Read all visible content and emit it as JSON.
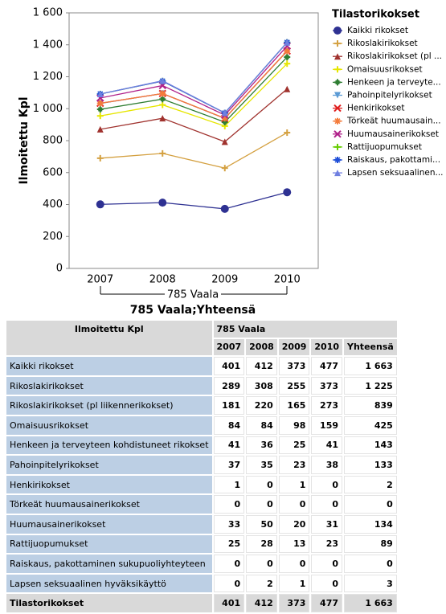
{
  "chart_data": {
    "type": "stacked-line",
    "title": "785 Vaala;Yhteensä",
    "x_group_label": "785 Vaala",
    "y_label": "Ilmoitettu Kpl",
    "legend_title": "Tilastorikokset",
    "legend": "right",
    "categories": [
      "2007",
      "2008",
      "2009",
      "2010"
    ],
    "ylim": [
      0,
      1600
    ],
    "yticks": [
      0,
      200,
      400,
      600,
      800,
      {
        "value": 1000,
        "label": "1 000"
      },
      {
        "value": 1200,
        "label": "1 200"
      },
      {
        "value": 1400,
        "label": "1 400"
      },
      {
        "value": 1600,
        "label": "1 600"
      }
    ],
    "series": [
      {
        "name": "Kaikki rikokset",
        "color": "#2e3192",
        "marker": "circle",
        "values": [
          401,
          412,
          373,
          477
        ]
      },
      {
        "name": "Rikoslakirikokset",
        "color": "#d4a040",
        "marker": "plus",
        "values": [
          289,
          308,
          255,
          373
        ]
      },
      {
        "name": "Rikoslakirikokset (pl ...",
        "color": "#a0322e",
        "marker": "triangle",
        "values": [
          181,
          220,
          165,
          273
        ]
      },
      {
        "name": "Omaisuusrikokset",
        "color": "#e6e600",
        "marker": "plus",
        "values": [
          84,
          84,
          98,
          159
        ]
      },
      {
        "name": "Henkeen ja terveyte...",
        "color": "#2e7d32",
        "marker": "square-plus",
        "values": [
          41,
          36,
          25,
          41
        ]
      },
      {
        "name": "Pahoinpitelyrikokset",
        "color": "#5b9bd5",
        "marker": "triangle-down",
        "values": [
          37,
          35,
          23,
          38
        ]
      },
      {
        "name": "Henkirikokset",
        "color": "#e02020",
        "marker": "x",
        "values": [
          1,
          0,
          1,
          0
        ]
      },
      {
        "name": "Törkeät huumausain...",
        "color": "#f47c3c",
        "marker": "asterisk",
        "values": [
          0,
          0,
          0,
          0
        ]
      },
      {
        "name": "Huumausainerikokset",
        "color": "#b0208a",
        "marker": "x",
        "values": [
          33,
          50,
          20,
          31
        ]
      },
      {
        "name": "Rattijuopumukset",
        "color": "#66cc00",
        "marker": "plus",
        "values": [
          25,
          28,
          13,
          23
        ]
      },
      {
        "name": "Raiskaus, pakottami...",
        "color": "#1f4fd8",
        "marker": "asterisk",
        "values": [
          0,
          0,
          0,
          0
        ]
      },
      {
        "name": "Lapsen seksuaalinen...",
        "color": "#6f7fe0",
        "marker": "triangle",
        "values": [
          0,
          2,
          1,
          0
        ]
      }
    ]
  },
  "table": {
    "corner": "Ilmoitettu Kpl",
    "group": "785 Vaala",
    "columns": [
      "2007",
      "2008",
      "2009",
      "2010",
      "Yhteensä"
    ],
    "rows": [
      {
        "label": "Kaikki rikokset",
        "cells": [
          "401",
          "412",
          "373",
          "477",
          "1 663"
        ]
      },
      {
        "label": "Rikoslakirikokset",
        "cells": [
          "289",
          "308",
          "255",
          "373",
          "1 225"
        ]
      },
      {
        "label": "Rikoslakirikokset (pl liikennerikokset)",
        "cells": [
          "181",
          "220",
          "165",
          "273",
          "839"
        ]
      },
      {
        "label": "Omaisuusrikokset",
        "cells": [
          "84",
          "84",
          "98",
          "159",
          "425"
        ]
      },
      {
        "label": "Henkeen ja terveyteen kohdistuneet rikokset",
        "cells": [
          "41",
          "36",
          "25",
          "41",
          "143"
        ]
      },
      {
        "label": "Pahoinpitelyrikokset",
        "cells": [
          "37",
          "35",
          "23",
          "38",
          "133"
        ]
      },
      {
        "label": "Henkirikokset",
        "cells": [
          "1",
          "0",
          "1",
          "0",
          "2"
        ]
      },
      {
        "label": "Törkeät huumausainerikokset",
        "cells": [
          "0",
          "0",
          "0",
          "0",
          "0"
        ]
      },
      {
        "label": "Huumausainerikokset",
        "cells": [
          "33",
          "50",
          "20",
          "31",
          "134"
        ]
      },
      {
        "label": "Rattijuopumukset",
        "cells": [
          "25",
          "28",
          "13",
          "23",
          "89"
        ]
      },
      {
        "label": "Raiskaus, pakottaminen sukupuoliyhteyteen",
        "cells": [
          "0",
          "0",
          "0",
          "0",
          "0"
        ]
      },
      {
        "label": "Lapsen seksuaalinen hyväksikäyttö",
        "cells": [
          "0",
          "2",
          "1",
          "0",
          "3"
        ]
      }
    ],
    "total": {
      "label": "Tilastorikokset",
      "cells": [
        "401",
        "412",
        "373",
        "477",
        "1 663"
      ]
    }
  }
}
